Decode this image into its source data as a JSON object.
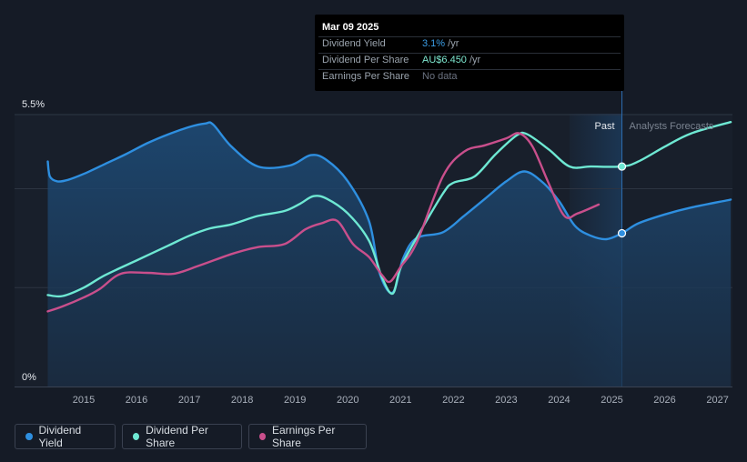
{
  "tooltip": {
    "date": "Mar 09 2025",
    "rows": [
      {
        "label": "Dividend Yield",
        "value": "3.1%",
        "suffix": " /yr",
        "color": "#3b9ee6"
      },
      {
        "label": "Dividend Per Share",
        "value": "AU$6.450",
        "suffix": " /yr",
        "color": "#7ee8d0"
      },
      {
        "label": "Earnings Per Share",
        "value": "No data",
        "suffix": "",
        "color": "#6b7280"
      }
    ]
  },
  "legend": [
    {
      "label": "Dividend Yield",
      "color": "#2e8fe0"
    },
    {
      "label": "Dividend Per Share",
      "color": "#6ee8d3"
    },
    {
      "label": "Earnings Per Share",
      "color": "#c94f8c"
    }
  ],
  "chart_data": {
    "type": "line",
    "y_tick_labels": [
      "5.5%",
      "0%"
    ],
    "ylim": [
      0,
      5.5
    ],
    "xlim": [
      2014.3,
      2027.25
    ],
    "x_tick_labels": [
      "2015",
      "2016",
      "2017",
      "2018",
      "2019",
      "2020",
      "2021",
      "2022",
      "2023",
      "2024",
      "2025",
      "2026",
      "2027"
    ],
    "annotations": {
      "past_label": "Past",
      "forecast_label": "Analysts Forecasts",
      "divider_x": 2025.19,
      "forecast_shade_start": 2024.2
    },
    "series": [
      {
        "name": "Dividend Yield",
        "color": "#2e8fe0",
        "area": true,
        "x": [
          2014.32,
          2014.36,
          2014.5,
          2014.7,
          2015.0,
          2015.4,
          2015.8,
          2016.2,
          2016.6,
          2017.0,
          2017.3,
          2017.45,
          2017.8,
          2018.3,
          2018.9,
          2019.3,
          2019.6,
          2020.0,
          2020.4,
          2020.6,
          2020.85,
          2021.05,
          2021.3,
          2021.8,
          2022.2,
          2022.6,
          2023.0,
          2023.35,
          2023.7,
          2024.0,
          2024.3,
          2024.6,
          2024.9,
          2025.19,
          2025.5,
          2026.0,
          2026.5,
          2027.25
        ],
        "y": [
          4.55,
          4.25,
          4.15,
          4.18,
          4.3,
          4.5,
          4.7,
          4.92,
          5.1,
          5.25,
          5.32,
          5.3,
          4.85,
          4.45,
          4.47,
          4.68,
          4.58,
          4.15,
          3.35,
          2.3,
          1.9,
          2.6,
          3.0,
          3.12,
          3.45,
          3.8,
          4.15,
          4.35,
          4.12,
          3.75,
          3.25,
          3.05,
          2.98,
          3.1,
          3.3,
          3.48,
          3.62,
          3.78
        ]
      },
      {
        "name": "Dividend Per Share",
        "color": "#6ee8d3",
        "x": [
          2014.32,
          2014.6,
          2015.0,
          2015.4,
          2016.0,
          2016.6,
          2017.0,
          2017.4,
          2017.8,
          2018.3,
          2018.8,
          2019.1,
          2019.35,
          2019.6,
          2020.0,
          2020.4,
          2020.65,
          2020.85,
          2021.0,
          2021.3,
          2021.8,
          2022.0,
          2022.4,
          2022.8,
          2023.2,
          2023.4,
          2023.8,
          2024.2,
          2024.6,
          2025.19,
          2025.5,
          2026.0,
          2026.5,
          2027.25
        ],
        "y": [
          1.85,
          1.83,
          2.0,
          2.25,
          2.55,
          2.85,
          3.05,
          3.2,
          3.28,
          3.45,
          3.55,
          3.7,
          3.85,
          3.8,
          3.5,
          2.95,
          2.2,
          1.88,
          2.4,
          3.0,
          3.9,
          4.12,
          4.25,
          4.7,
          5.08,
          5.1,
          4.8,
          4.45,
          4.45,
          4.45,
          4.55,
          4.85,
          5.12,
          5.35
        ]
      },
      {
        "name": "Earnings Per Share",
        "color": "#c94f8c",
        "x": [
          2014.32,
          2014.6,
          2015.0,
          2015.3,
          2015.7,
          2016.2,
          2016.7,
          2017.2,
          2017.8,
          2018.3,
          2018.8,
          2019.2,
          2019.5,
          2019.8,
          2020.1,
          2020.4,
          2020.65,
          2020.8,
          2021.0,
          2021.3,
          2021.8,
          2022.2,
          2022.6,
          2023.0,
          2023.25,
          2023.5,
          2023.8,
          2024.1,
          2024.35,
          2024.75
        ],
        "y": [
          1.52,
          1.62,
          1.8,
          1.97,
          2.28,
          2.3,
          2.28,
          2.45,
          2.68,
          2.82,
          2.88,
          3.18,
          3.3,
          3.35,
          2.88,
          2.62,
          2.25,
          2.12,
          2.42,
          2.9,
          4.25,
          4.75,
          4.88,
          5.02,
          5.12,
          4.85,
          4.12,
          3.45,
          3.5,
          3.68
        ]
      }
    ]
  }
}
